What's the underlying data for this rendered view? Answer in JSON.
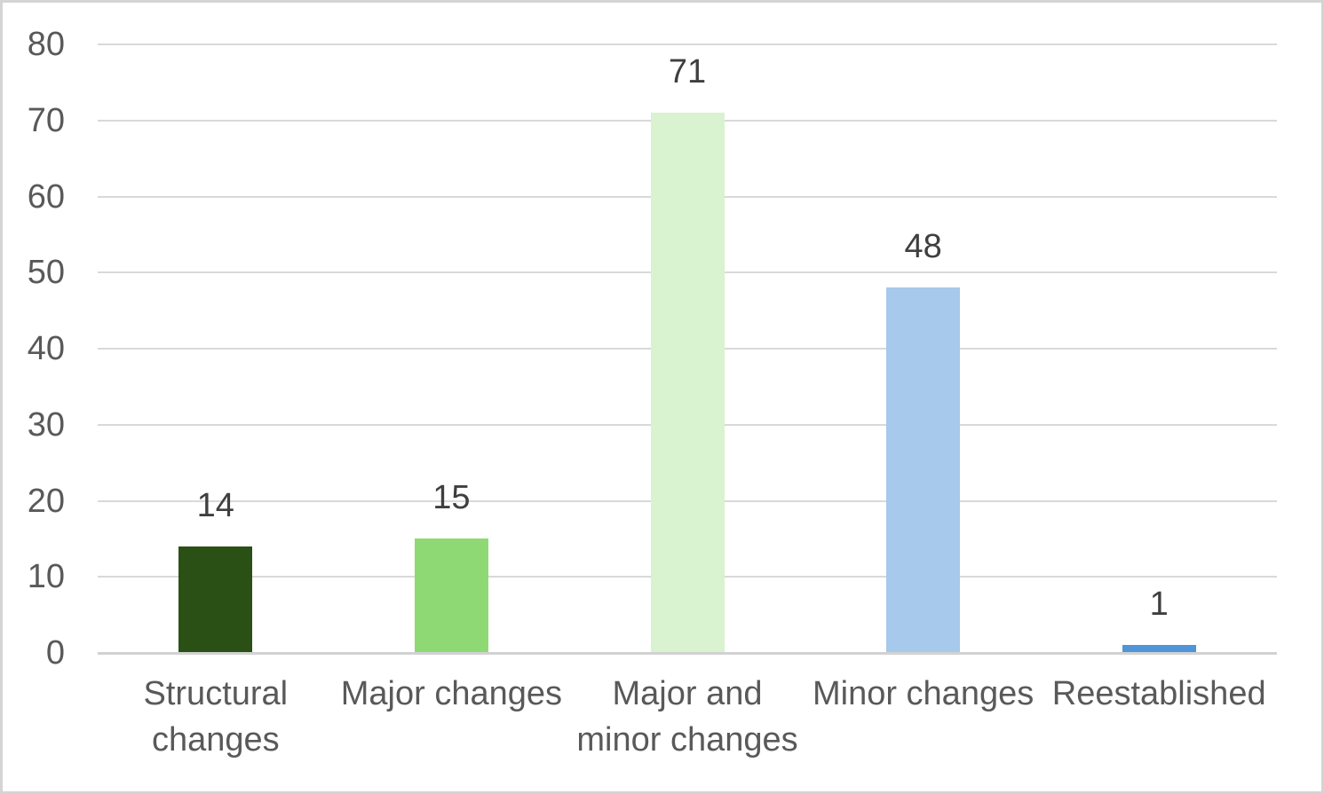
{
  "chart_data": {
    "type": "bar",
    "title": "",
    "xlabel": "",
    "ylabel": "",
    "categories": [
      "Structural changes",
      "Major changes",
      "Major and minor changes",
      "Minor changes",
      "Reestablished"
    ],
    "values": [
      14,
      15,
      71,
      48,
      1
    ],
    "data_labels": [
      "14",
      "15",
      "71",
      "48",
      "1"
    ],
    "bar_colors": [
      "#2a5016",
      "#8ed973",
      "#d9f2d0",
      "#a6c9ec",
      "#4e95d9"
    ],
    "ylim": [
      0,
      80
    ],
    "yticks": [
      0,
      10,
      20,
      30,
      40,
      50,
      60,
      70,
      80
    ],
    "grid": "horizontal-only",
    "legend": "none",
    "colors": {
      "gridline": "#d9d9d9",
      "baseline": "#d2d2d2",
      "axis_text": "#595959",
      "data_label_text": "#3f3f3f",
      "background": "#ffffff",
      "frame_border": "#d4d4d4"
    }
  }
}
